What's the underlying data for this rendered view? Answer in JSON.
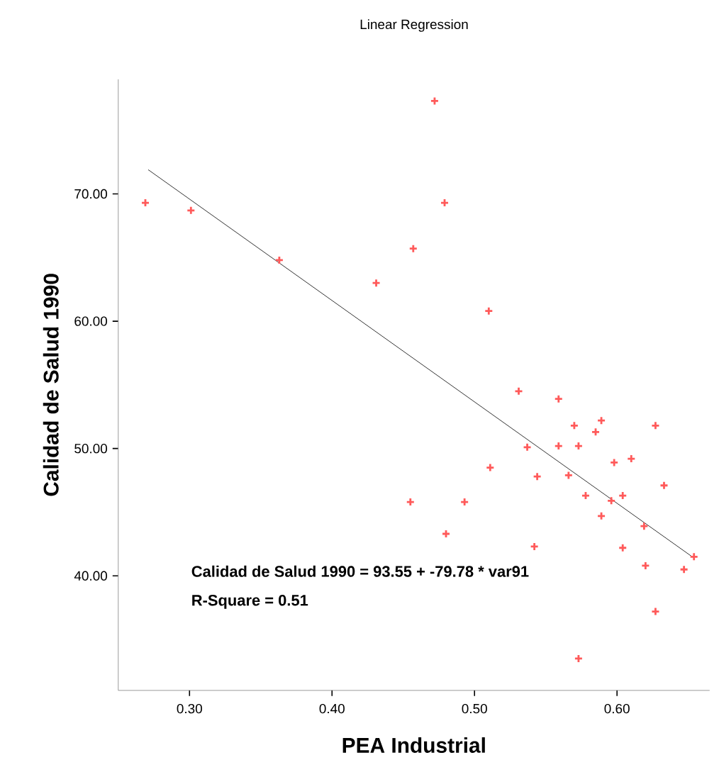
{
  "chart_data": {
    "type": "scatter",
    "title": "Linear Regression",
    "xlabel": "PEA Industrial",
    "ylabel": "Calidad de Salud 1990",
    "xlim": [
      0.25,
      0.665
    ],
    "ylim": [
      31,
      79
    ],
    "xticks": [
      {
        "value": 0.3,
        "label": "0.30"
      },
      {
        "value": 0.4,
        "label": "0.40"
      },
      {
        "value": 0.5,
        "label": "0.50"
      },
      {
        "value": 0.6,
        "label": "0.60"
      }
    ],
    "yticks": [
      {
        "value": 40,
        "label": "40.00"
      },
      {
        "value": 50,
        "label": "50.00"
      },
      {
        "value": 60,
        "label": "60.00"
      },
      {
        "value": 70,
        "label": "70.00"
      }
    ],
    "grid": false,
    "marker": "cross",
    "annotations": [
      "Calidad de Salud 1990 = 93.55 + -79.78 * var91",
      "R-Square = 0.51"
    ],
    "series": [
      {
        "color": "#ff5a5a",
        "x": [
          0.269,
          0.301,
          0.363,
          0.431,
          0.457,
          0.472,
          0.479,
          0.51,
          0.531,
          0.537,
          0.511,
          0.455,
          0.493,
          0.48,
          0.559,
          0.57,
          0.589,
          0.585,
          0.627,
          0.559,
          0.573,
          0.598,
          0.61,
          0.544,
          0.566,
          0.578,
          0.596,
          0.604,
          0.633,
          0.589,
          0.619,
          0.542,
          0.604,
          0.62,
          0.647,
          0.654,
          0.627,
          0.573
        ],
        "values": [
          69.3,
          68.7,
          64.8,
          63.0,
          65.7,
          77.3,
          69.3,
          60.8,
          54.5,
          50.1,
          48.5,
          45.8,
          45.8,
          43.3,
          53.9,
          51.8,
          52.2,
          51.3,
          51.8,
          50.2,
          50.2,
          48.9,
          49.2,
          47.8,
          47.9,
          46.3,
          45.9,
          46.3,
          47.1,
          44.7,
          43.9,
          42.3,
          42.2,
          40.8,
          40.5,
          41.5,
          37.2,
          33.5
        ]
      },
      {
        "type": "line",
        "color": "#000000",
        "marker": "none",
        "x": [
          0.271,
          0.654
        ],
        "values": [
          71.9,
          41.4
        ]
      }
    ]
  }
}
